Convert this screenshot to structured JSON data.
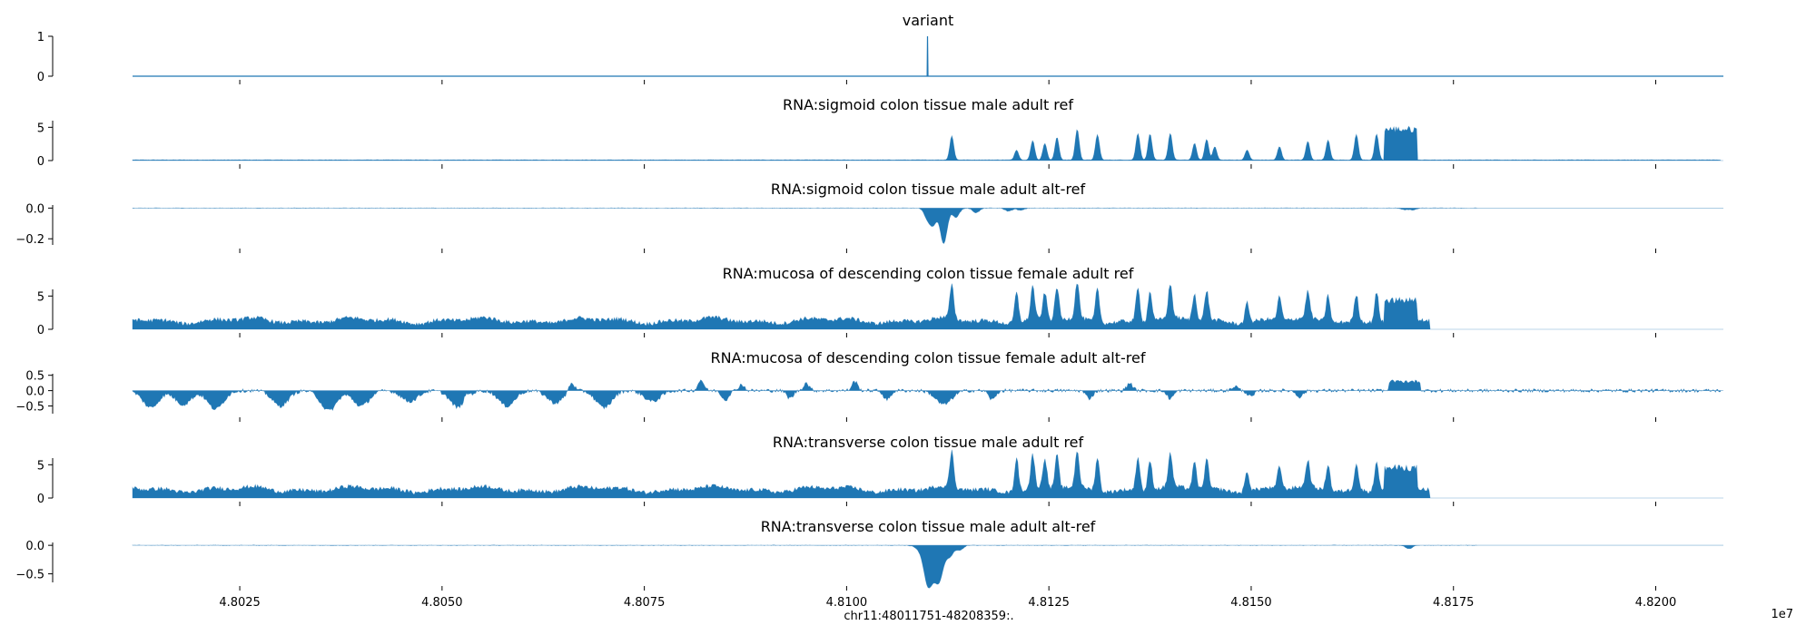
{
  "figure": {
    "xlabel": "chr11:48011751-48208359:.",
    "x_exponent": "1e7"
  },
  "colors": {
    "series": "#1f77b4",
    "axis": "#000000"
  },
  "chart_data": {
    "type": "area",
    "x_range": [
      48011751,
      48208359
    ],
    "x_ticks": [
      48025000,
      48050000,
      48075000,
      48100000,
      48125000,
      48150000,
      48175000,
      48200000
    ],
    "x_tick_labels": [
      "4.8025",
      "4.8050",
      "4.8075",
      "4.8100",
      "4.8125",
      "4.8150",
      "4.8175",
      "4.8200"
    ],
    "grid": false,
    "tracks": [
      {
        "title": "variant",
        "ylim": [
          0,
          1
        ],
        "y_ticks": [
          0,
          1
        ],
        "y_tick_labels": [
          "0",
          "1"
        ],
        "kind": "spike",
        "points": [
          [
            48011751,
            0
          ],
          [
            48109950,
            0
          ],
          [
            48110000,
            1
          ],
          [
            48110050,
            0
          ],
          [
            48208359,
            0
          ]
        ]
      },
      {
        "title": "RNA:sigmoid colon tissue male adult ref",
        "ylim": [
          0,
          6
        ],
        "y_ticks": [
          0,
          5
        ],
        "y_tick_labels": [
          "0",
          "5"
        ],
        "kind": "ref",
        "baseline": 0.1,
        "active_end": 48208000,
        "noise": 0.05,
        "peaks": [
          [
            48113000,
            3.6
          ],
          [
            48121000,
            1.5
          ],
          [
            48123000,
            2.9
          ],
          [
            48124500,
            2.5
          ],
          [
            48126000,
            3.4
          ],
          [
            48128500,
            4.6
          ],
          [
            48131000,
            3.8
          ],
          [
            48136000,
            4.0
          ],
          [
            48137500,
            3.9
          ],
          [
            48140000,
            4.0
          ],
          [
            48143000,
            2.5
          ],
          [
            48144500,
            3.1
          ],
          [
            48145500,
            2.0
          ],
          [
            48149500,
            1.5
          ],
          [
            48153500,
            2.0
          ],
          [
            48157000,
            2.8
          ],
          [
            48159500,
            3.0
          ],
          [
            48163000,
            3.8
          ],
          [
            48165500,
            3.9
          ]
        ],
        "plateau": [
          48166500,
          48170500,
          5.2
        ]
      },
      {
        "title": "RNA:sigmoid colon tissue male adult alt-ref",
        "ylim": [
          -0.24,
          0.02
        ],
        "y_ticks": [
          0,
          -0.2
        ],
        "y_tick_labels": [
          "0.0",
          "−0.2"
        ],
        "kind": "alt",
        "active_end": 48178000,
        "noise": 0.004,
        "dips": [
          [
            48110000,
            -0.06
          ],
          [
            48110700,
            -0.1
          ],
          [
            48112000,
            -0.23
          ],
          [
            48113500,
            -0.06
          ],
          [
            48116000,
            -0.03
          ],
          [
            48120000,
            -0.02
          ],
          [
            48121500,
            -0.015
          ],
          [
            48169000,
            -0.01
          ],
          [
            48170000,
            -0.012
          ]
        ],
        "bumps": [],
        "plateau": null
      },
      {
        "title": "RNA:mucosa of descending colon tissue female adult ref",
        "ylim": [
          0,
          6
        ],
        "y_ticks": [
          0,
          5
        ],
        "y_tick_labels": [
          "0",
          "5"
        ],
        "kind": "ref",
        "baseline": 1.3,
        "active_end": 48172000,
        "noise": 0.6,
        "peaks": [
          [
            48113000,
            5.0
          ],
          [
            48121000,
            4.5
          ],
          [
            48123000,
            5.0
          ],
          [
            48124500,
            4.0
          ],
          [
            48126000,
            5.0
          ],
          [
            48128500,
            5.5
          ],
          [
            48131000,
            5.0
          ],
          [
            48136000,
            5.0
          ],
          [
            48137500,
            4.5
          ],
          [
            48140000,
            5.0
          ],
          [
            48143000,
            4.0
          ],
          [
            48144500,
            4.5
          ],
          [
            48149500,
            3.0
          ],
          [
            48153500,
            3.5
          ],
          [
            48157000,
            4.0
          ],
          [
            48159500,
            4.0
          ],
          [
            48163000,
            4.0
          ],
          [
            48165500,
            4.5
          ]
        ],
        "plateau": [
          48166500,
          48170500,
          4.8
        ]
      },
      {
        "title": "RNA:mucosa of descending colon tissue female adult alt-ref",
        "ylim": [
          -0.75,
          0.55
        ],
        "y_ticks": [
          0.5,
          0,
          -0.5
        ],
        "y_tick_labels": [
          "0.5",
          "0.0",
          "−0.5"
        ],
        "kind": "alt",
        "active_end": 48208000,
        "noise": 0.12,
        "dips": [
          [
            48014000,
            -0.55
          ],
          [
            48018000,
            -0.45
          ],
          [
            48022000,
            -0.6
          ],
          [
            48030000,
            -0.5
          ],
          [
            48036000,
            -0.65
          ],
          [
            48040000,
            -0.5
          ],
          [
            48046000,
            -0.35
          ],
          [
            48052000,
            -0.55
          ],
          [
            48058000,
            -0.5
          ],
          [
            48064000,
            -0.4
          ],
          [
            48070000,
            -0.55
          ],
          [
            48076000,
            -0.35
          ],
          [
            48085000,
            -0.3
          ],
          [
            48093000,
            -0.25
          ],
          [
            48105000,
            -0.3
          ],
          [
            48112000,
            -0.45
          ],
          [
            48118000,
            -0.3
          ],
          [
            48130000,
            -0.25
          ],
          [
            48140000,
            -0.25
          ],
          [
            48150000,
            -0.2
          ],
          [
            48156000,
            -0.2
          ]
        ],
        "bumps": [
          [
            48053000,
            0.2
          ],
          [
            48066000,
            0.3
          ],
          [
            48082000,
            0.35
          ],
          [
            48087000,
            0.2
          ],
          [
            48095000,
            0.25
          ],
          [
            48101000,
            0.3
          ],
          [
            48135000,
            0.25
          ],
          [
            48148000,
            0.15
          ]
        ],
        "plateau": [
          48167000,
          48171000,
          0.35
        ]
      },
      {
        "title": "RNA:transverse colon tissue male adult ref",
        "ylim": [
          0,
          6
        ],
        "y_ticks": [
          0,
          5
        ],
        "y_tick_labels": [
          "0",
          "5"
        ],
        "kind": "ref",
        "baseline": 1.3,
        "active_end": 48172000,
        "noise": 0.6,
        "peaks": [
          [
            48113000,
            5.4
          ],
          [
            48121000,
            5.0
          ],
          [
            48123000,
            5.0
          ],
          [
            48124500,
            4.5
          ],
          [
            48126000,
            5.0
          ],
          [
            48128500,
            5.5
          ],
          [
            48131000,
            5.0
          ],
          [
            48136000,
            5.0
          ],
          [
            48137500,
            4.5
          ],
          [
            48140000,
            5.0
          ],
          [
            48143000,
            4.0
          ],
          [
            48144500,
            4.5
          ],
          [
            48149500,
            3.0
          ],
          [
            48153500,
            3.5
          ],
          [
            48157000,
            4.0
          ],
          [
            48159500,
            4.0
          ],
          [
            48163000,
            4.0
          ],
          [
            48165500,
            4.5
          ]
        ],
        "plateau": [
          48166500,
          48170500,
          5.0
        ]
      },
      {
        "title": "RNA:transverse colon tissue male adult alt-ref",
        "ylim": [
          -0.65,
          0.05
        ],
        "y_ticks": [
          0,
          -0.5
        ],
        "y_tick_labels": [
          "0.0",
          "−0.5"
        ],
        "kind": "alt",
        "active_end": 48178000,
        "noise": 0.01,
        "dips": [
          [
            48110000,
            -0.3
          ],
          [
            48110700,
            -0.55
          ],
          [
            48111500,
            -0.25
          ],
          [
            48112800,
            -0.15
          ],
          [
            48114000,
            -0.08
          ],
          [
            48169500,
            -0.06
          ]
        ],
        "bumps": [],
        "plateau": null
      }
    ]
  }
}
